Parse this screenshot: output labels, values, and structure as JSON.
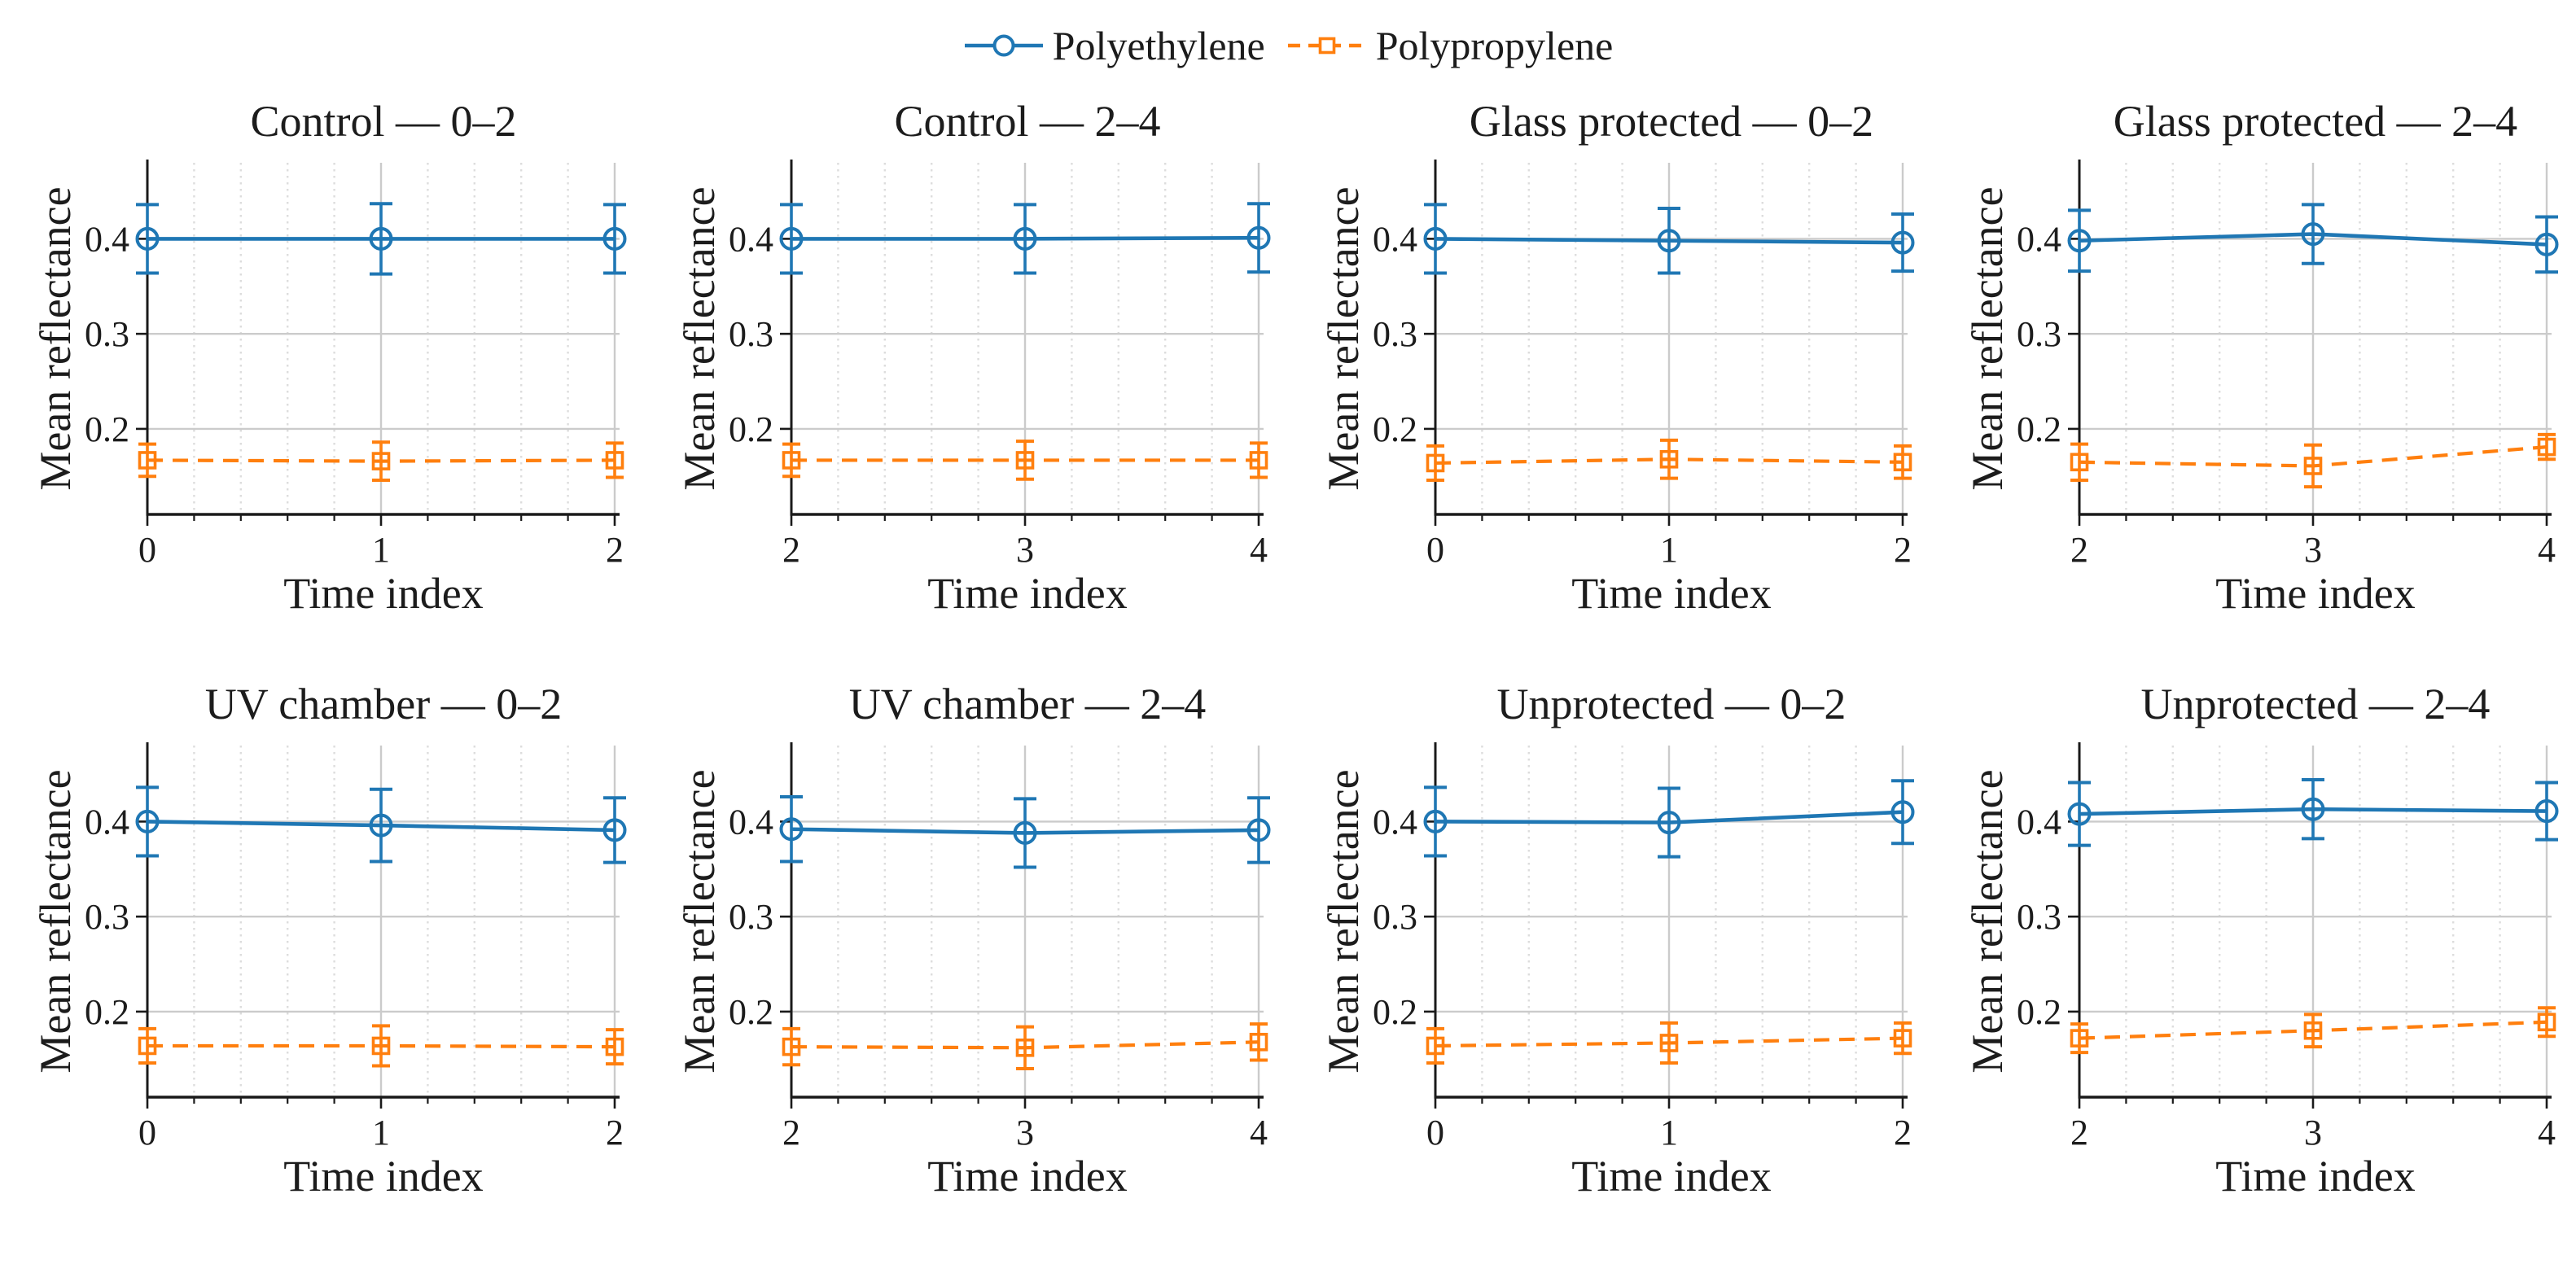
{
  "legend": {
    "items": [
      {
        "label": "Polyethylene",
        "key": "polyethylene"
      },
      {
        "label": "Polypropylene",
        "key": "polypropylene"
      }
    ]
  },
  "labels": {
    "xlabel": "Time index",
    "ylabel": "Mean reflectance"
  },
  "style": {
    "text_color": "#1c1c1c",
    "spine_color": "#1a1a1a",
    "major_grid_color": "#cbcbcb",
    "minor_grid_color": "#dddddd",
    "series": {
      "polyethylene": {
        "color": "#1f77b4",
        "marker": "circle",
        "line": "solid"
      },
      "polypropylene": {
        "color": "#ff7f0e",
        "marker": "square",
        "line": "dashed"
      }
    }
  },
  "chart_data": [
    {
      "type": "line",
      "title": "Control — 0–2",
      "x": [
        0,
        1,
        2
      ],
      "xticks": [
        0,
        1,
        2
      ],
      "xtick_labels": [
        "0",
        "1",
        "2"
      ],
      "yticks": [
        0.2,
        0.3,
        0.4
      ],
      "ylim": [
        0.11,
        0.48
      ],
      "minor_x_step": 0.2,
      "series": [
        {
          "name": "Polyethylene",
          "key": "polyethylene",
          "values": [
            0.4,
            0.4,
            0.4
          ],
          "errors": [
            0.036,
            0.037,
            0.036
          ]
        },
        {
          "name": "Polypropylene",
          "key": "polypropylene",
          "values": [
            0.167,
            0.166,
            0.167
          ],
          "errors": [
            0.017,
            0.02,
            0.018
          ]
        }
      ]
    },
    {
      "type": "line",
      "title": "Control — 2–4",
      "x": [
        2,
        3,
        4
      ],
      "xticks": [
        2,
        3,
        4
      ],
      "xtick_labels": [
        "2",
        "3",
        "4"
      ],
      "yticks": [
        0.2,
        0.3,
        0.4
      ],
      "ylim": [
        0.11,
        0.48
      ],
      "minor_x_step": 0.2,
      "series": [
        {
          "name": "Polyethylene",
          "key": "polyethylene",
          "values": [
            0.4,
            0.4,
            0.401
          ],
          "errors": [
            0.036,
            0.036,
            0.036
          ]
        },
        {
          "name": "Polypropylene",
          "key": "polypropylene",
          "values": [
            0.167,
            0.167,
            0.167
          ],
          "errors": [
            0.017,
            0.02,
            0.018
          ]
        }
      ]
    },
    {
      "type": "line",
      "title": "Glass protected — 0–2",
      "x": [
        0,
        1,
        2
      ],
      "xticks": [
        0,
        1,
        2
      ],
      "xtick_labels": [
        "0",
        "1",
        "2"
      ],
      "yticks": [
        0.2,
        0.3,
        0.4
      ],
      "ylim": [
        0.11,
        0.48
      ],
      "minor_x_step": 0.2,
      "series": [
        {
          "name": "Polyethylene",
          "key": "polyethylene",
          "values": [
            0.4,
            0.398,
            0.396
          ],
          "errors": [
            0.036,
            0.034,
            0.03
          ]
        },
        {
          "name": "Polypropylene",
          "key": "polypropylene",
          "values": [
            0.164,
            0.168,
            0.165
          ],
          "errors": [
            0.018,
            0.02,
            0.017
          ]
        }
      ]
    },
    {
      "type": "line",
      "title": "Glass protected — 2–4",
      "x": [
        2,
        3,
        4
      ],
      "xticks": [
        2,
        3,
        4
      ],
      "xtick_labels": [
        "2",
        "3",
        "4"
      ],
      "yticks": [
        0.2,
        0.3,
        0.4
      ],
      "ylim": [
        0.11,
        0.48
      ],
      "minor_x_step": 0.2,
      "series": [
        {
          "name": "Polyethylene",
          "key": "polyethylene",
          "values": [
            0.398,
            0.405,
            0.394
          ],
          "errors": [
            0.032,
            0.031,
            0.029
          ]
        },
        {
          "name": "Polypropylene",
          "key": "polypropylene",
          "values": [
            0.165,
            0.161,
            0.181
          ],
          "errors": [
            0.019,
            0.022,
            0.013
          ]
        }
      ]
    },
    {
      "type": "line",
      "title": "UV chamber — 0–2",
      "x": [
        0,
        1,
        2
      ],
      "xticks": [
        0,
        1,
        2
      ],
      "xtick_labels": [
        "0",
        "1",
        "2"
      ],
      "yticks": [
        0.2,
        0.3,
        0.4
      ],
      "ylim": [
        0.11,
        0.48
      ],
      "minor_x_step": 0.2,
      "series": [
        {
          "name": "Polyethylene",
          "key": "polyethylene",
          "values": [
            0.4,
            0.396,
            0.391
          ],
          "errors": [
            0.036,
            0.038,
            0.034
          ]
        },
        {
          "name": "Polypropylene",
          "key": "polypropylene",
          "values": [
            0.164,
            0.164,
            0.163
          ],
          "errors": [
            0.018,
            0.021,
            0.018
          ]
        }
      ]
    },
    {
      "type": "line",
      "title": "UV chamber — 2–4",
      "x": [
        2,
        3,
        4
      ],
      "xticks": [
        2,
        3,
        4
      ],
      "xtick_labels": [
        "2",
        "3",
        "4"
      ],
      "yticks": [
        0.2,
        0.3,
        0.4
      ],
      "ylim": [
        0.11,
        0.48
      ],
      "minor_x_step": 0.2,
      "series": [
        {
          "name": "Polyethylene",
          "key": "polyethylene",
          "values": [
            0.392,
            0.388,
            0.391
          ],
          "errors": [
            0.034,
            0.036,
            0.034
          ]
        },
        {
          "name": "Polypropylene",
          "key": "polypropylene",
          "values": [
            0.163,
            0.162,
            0.168
          ],
          "errors": [
            0.019,
            0.022,
            0.019
          ]
        }
      ]
    },
    {
      "type": "line",
      "title": "Unprotected — 0–2",
      "x": [
        0,
        1,
        2
      ],
      "xticks": [
        0,
        1,
        2
      ],
      "xtick_labels": [
        "0",
        "1",
        "2"
      ],
      "yticks": [
        0.2,
        0.3,
        0.4
      ],
      "ylim": [
        0.11,
        0.48
      ],
      "minor_x_step": 0.2,
      "series": [
        {
          "name": "Polyethylene",
          "key": "polyethylene",
          "values": [
            0.4,
            0.399,
            0.41
          ],
          "errors": [
            0.036,
            0.036,
            0.033
          ]
        },
        {
          "name": "Polypropylene",
          "key": "polypropylene",
          "values": [
            0.164,
            0.167,
            0.172
          ],
          "errors": [
            0.018,
            0.021,
            0.016
          ]
        }
      ]
    },
    {
      "type": "line",
      "title": "Unprotected — 2–4",
      "x": [
        2,
        3,
        4
      ],
      "xticks": [
        2,
        3,
        4
      ],
      "xtick_labels": [
        "2",
        "3",
        "4"
      ],
      "yticks": [
        0.2,
        0.3,
        0.4
      ],
      "ylim": [
        0.11,
        0.48
      ],
      "minor_x_step": 0.2,
      "series": [
        {
          "name": "Polyethylene",
          "key": "polyethylene",
          "values": [
            0.408,
            0.413,
            0.411
          ],
          "errors": [
            0.033,
            0.031,
            0.03
          ]
        },
        {
          "name": "Polypropylene",
          "key": "polypropylene",
          "values": [
            0.172,
            0.18,
            0.189
          ],
          "errors": [
            0.015,
            0.017,
            0.015
          ]
        }
      ]
    }
  ]
}
